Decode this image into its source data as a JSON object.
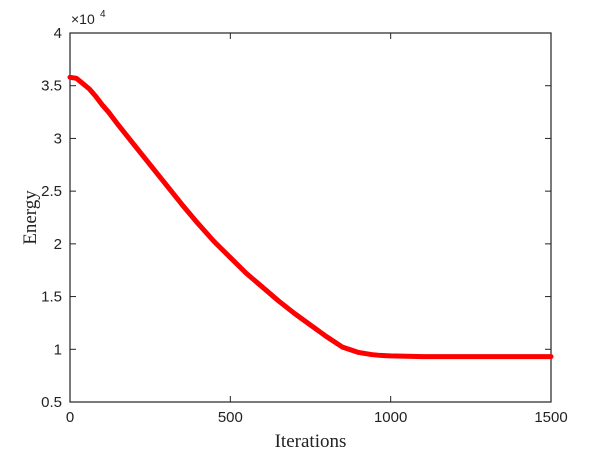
{
  "chart_data": {
    "type": "line",
    "xlabel": "Iterations",
    "ylabel": "Energy",
    "xlim": [
      0,
      1500
    ],
    "ylim": [
      0.5,
      4
    ],
    "x_ticks": [
      0,
      500,
      1000,
      1500
    ],
    "x_tick_labels": [
      "0",
      "500",
      "1000",
      "1500"
    ],
    "y_ticks": [
      0.5,
      1,
      1.5,
      2,
      2.5,
      3,
      3.5,
      4
    ],
    "y_tick_labels": [
      "0.5",
      "1",
      "1.5",
      "2",
      "2.5",
      "3",
      "3.5",
      "4"
    ],
    "y_exponent_label": {
      "base": "×10",
      "power": "4"
    },
    "grid": false,
    "series": [
      {
        "color": "#ff0000",
        "x": [
          0,
          20,
          40,
          60,
          80,
          100,
          120,
          150,
          200,
          250,
          300,
          350,
          400,
          450,
          500,
          550,
          600,
          650,
          700,
          750,
          800,
          850,
          900,
          940,
          960,
          980,
          1000,
          1050,
          1100,
          1200,
          1300,
          1400,
          1500
        ],
        "y": [
          3.58,
          3.57,
          3.52,
          3.47,
          3.4,
          3.32,
          3.25,
          3.13,
          2.94,
          2.75,
          2.56,
          2.37,
          2.19,
          2.02,
          1.87,
          1.72,
          1.59,
          1.46,
          1.34,
          1.23,
          1.12,
          1.02,
          0.97,
          0.95,
          0.944,
          0.94,
          0.937,
          0.934,
          0.93,
          0.93,
          0.93,
          0.93,
          0.93
        ]
      }
    ]
  }
}
